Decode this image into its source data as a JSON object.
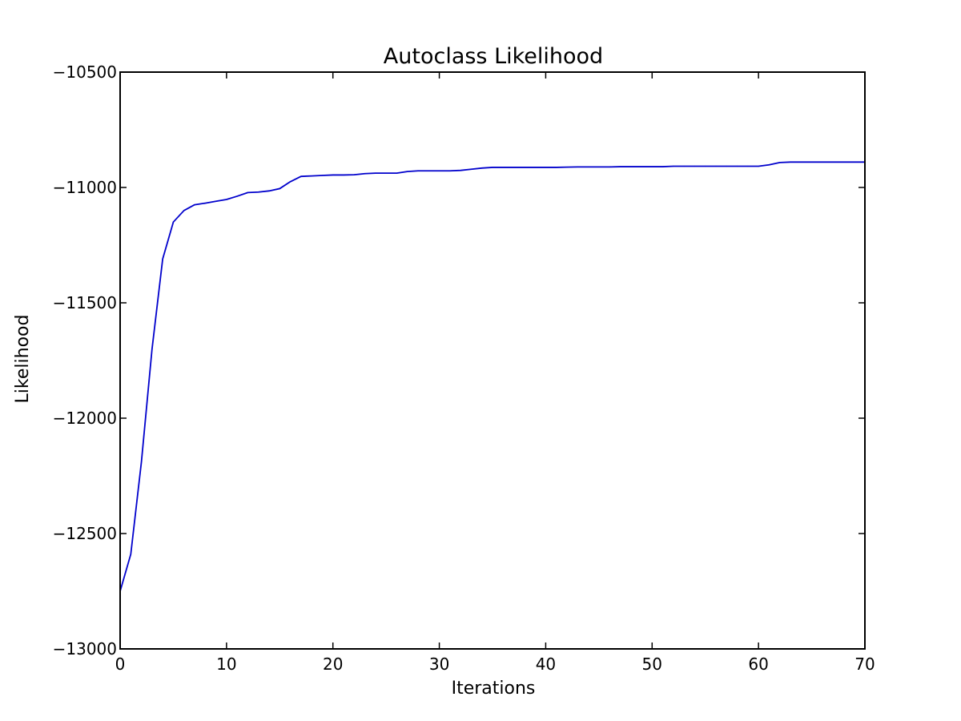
{
  "chart_data": {
    "type": "line",
    "title": "Autoclass Likelihood",
    "xlabel": "Iterations",
    "ylabel": "Likelihood",
    "xlim": [
      0,
      70
    ],
    "ylim": [
      -13000,
      -10500
    ],
    "xticks": [
      0,
      10,
      20,
      30,
      40,
      50,
      60,
      70
    ],
    "yticks": [
      -13000,
      -12500,
      -12000,
      -11500,
      -11000,
      -10500
    ],
    "xtick_labels": [
      "0",
      "10",
      "20",
      "30",
      "40",
      "50",
      "60",
      "70"
    ],
    "ytick_labels": [
      "−13000",
      "−12500",
      "−12000",
      "−11500",
      "−11000",
      "−10500"
    ],
    "grid": false,
    "series": [
      {
        "color": "#0000cc",
        "x": [
          0,
          1,
          2,
          3,
          4,
          5,
          6,
          7,
          8,
          9,
          10,
          11,
          12,
          13,
          14,
          15,
          16,
          17,
          18,
          19,
          20,
          21,
          22,
          23,
          24,
          25,
          26,
          27,
          28,
          29,
          30,
          31,
          32,
          33,
          34,
          35,
          36,
          37,
          38,
          39,
          40,
          41,
          42,
          43,
          44,
          45,
          46,
          47,
          48,
          49,
          50,
          51,
          52,
          53,
          54,
          55,
          56,
          57,
          58,
          59,
          60,
          61,
          62,
          63,
          64,
          65,
          66,
          67,
          68,
          69,
          70
        ],
        "y": [
          -12750,
          -12590,
          -12190,
          -11700,
          -11310,
          -11150,
          -11100,
          -11075,
          -11068,
          -11060,
          -11052,
          -11038,
          -11022,
          -11020,
          -11015,
          -11005,
          -10975,
          -10952,
          -10950,
          -10948,
          -10946,
          -10946,
          -10945,
          -10940,
          -10938,
          -10938,
          -10938,
          -10931,
          -10928,
          -10928,
          -10928,
          -10928,
          -10926,
          -10921,
          -10916,
          -10913,
          -10913,
          -10913,
          -10913,
          -10913,
          -10913,
          -10913,
          -10912,
          -10911,
          -10911,
          -10911,
          -10911,
          -10910,
          -10910,
          -10910,
          -10910,
          -10910,
          -10908,
          -10908,
          -10908,
          -10908,
          -10908,
          -10908,
          -10908,
          -10908,
          -10908,
          -10902,
          -10892,
          -10890,
          -10890,
          -10890,
          -10890,
          -10890,
          -10890,
          -10890,
          -10890
        ]
      }
    ]
  }
}
